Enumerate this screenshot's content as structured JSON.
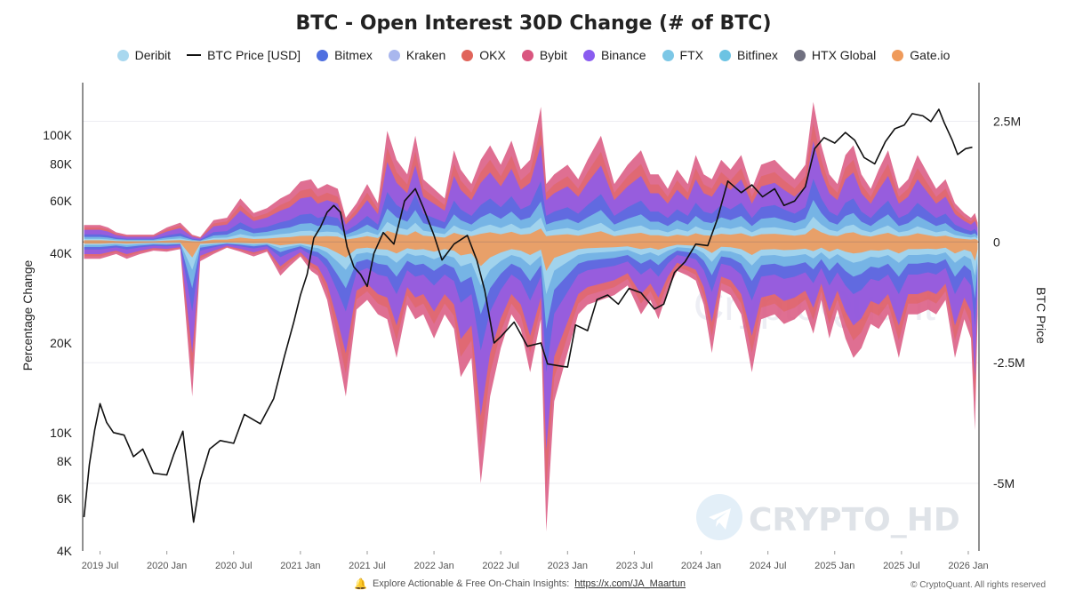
{
  "title": "BTC - Open Interest 30D Change (# of BTC)",
  "legend": [
    {
      "label": "Deribit",
      "color": "#a9d8ef",
      "kind": "dot"
    },
    {
      "label": "BTC Price [USD]",
      "color": "#111111",
      "kind": "line"
    },
    {
      "label": "Bitmex",
      "color": "#4f6fe0",
      "kind": "dot"
    },
    {
      "label": "Kraken",
      "color": "#a9b7ee",
      "kind": "dot"
    },
    {
      "label": "OKX",
      "color": "#e0645a",
      "kind": "dot"
    },
    {
      "label": "Bybit",
      "color": "#d9567f",
      "kind": "dot"
    },
    {
      "label": "Binance",
      "color": "#8a5cf0",
      "kind": "dot"
    },
    {
      "label": "FTX",
      "color": "#7cc7e6",
      "kind": "dot"
    },
    {
      "label": "Bitfinex",
      "color": "#6cc3e3",
      "kind": "dot"
    },
    {
      "label": "HTX Global",
      "color": "#707080",
      "kind": "dot"
    },
    {
      "label": "Gate.io",
      "color": "#ef9a5a",
      "kind": "dot"
    }
  ],
  "watermarks": {
    "center": "CryptoQuant",
    "corner": "CRYPTO_HD"
  },
  "footer": {
    "text": "Explore Actionable & Free On-Chain Insights:",
    "link": "https://x.com/JA_Maartun",
    "copyright": "© CryptoQuant. All rights reserved"
  },
  "chart_data": {
    "type": "area",
    "title": "BTC - Open Interest 30D Change (# of BTC)",
    "ylabel_left": "Percentage Change",
    "ylabel_right": "BTC Price",
    "x_ticks": [
      "2019 Jul",
      "2020 Jan",
      "2020 Jul",
      "2021 Jan",
      "2021 Jul",
      "2022 Jan",
      "2022 Jul",
      "2023 Jan",
      "2023 Jul",
      "2024 Jan",
      "2024 Jul",
      "2025 Jan",
      "2025 Jul",
      "2026 Jan"
    ],
    "left_axis": {
      "scale": "log",
      "ticks": [
        4000,
        6000,
        8000,
        10000,
        20000,
        40000,
        60000,
        80000,
        100000
      ],
      "tick_labels": [
        "4K",
        "6K",
        "8K",
        "10K",
        "20K",
        "40K",
        "60K",
        "80K",
        "100K"
      ],
      "range": [
        4000,
        150000
      ]
    },
    "right_axis": {
      "ticks": [
        2500000,
        0,
        -2500000,
        -5000000
      ],
      "tick_labels": [
        "2.5M",
        "0",
        "-2.5M",
        "-5M"
      ],
      "range": [
        -6400000,
        3300000
      ]
    },
    "grid": "horizontal",
    "legend_position": "top",
    "x_range": [
      2019.37,
      2026.08
    ],
    "price_series": {
      "name": "BTC Price [USD]",
      "points": [
        [
          2019.38,
          5200
        ],
        [
          2019.42,
          7800
        ],
        [
          2019.46,
          10200
        ],
        [
          2019.5,
          12500
        ],
        [
          2019.55,
          10800
        ],
        [
          2019.6,
          10000
        ],
        [
          2019.68,
          9800
        ],
        [
          2019.75,
          8300
        ],
        [
          2019.82,
          8800
        ],
        [
          2019.9,
          7300
        ],
        [
          2020.0,
          7200
        ],
        [
          2020.05,
          8400
        ],
        [
          2020.12,
          10100
        ],
        [
          2020.18,
          6000
        ],
        [
          2020.2,
          5000
        ],
        [
          2020.25,
          6900
        ],
        [
          2020.32,
          8800
        ],
        [
          2020.4,
          9400
        ],
        [
          2020.5,
          9200
        ],
        [
          2020.58,
          11500
        ],
        [
          2020.7,
          10700
        ],
        [
          2020.8,
          13000
        ],
        [
          2020.88,
          18000
        ],
        [
          2020.95,
          23500
        ],
        [
          2021.0,
          29000
        ],
        [
          2021.05,
          34000
        ],
        [
          2021.1,
          45000
        ],
        [
          2021.15,
          49000
        ],
        [
          2021.2,
          55000
        ],
        [
          2021.25,
          58000
        ],
        [
          2021.3,
          55000
        ],
        [
          2021.35,
          42000
        ],
        [
          2021.4,
          36000
        ],
        [
          2021.45,
          34000
        ],
        [
          2021.5,
          31000
        ],
        [
          2021.55,
          40000
        ],
        [
          2021.62,
          47000
        ],
        [
          2021.7,
          43000
        ],
        [
          2021.78,
          60000
        ],
        [
          2021.86,
          66000
        ],
        [
          2021.92,
          57000
        ],
        [
          2022.0,
          46000
        ],
        [
          2022.06,
          38000
        ],
        [
          2022.15,
          43000
        ],
        [
          2022.25,
          46000
        ],
        [
          2022.32,
          38000
        ],
        [
          2022.38,
          30000
        ],
        [
          2022.45,
          20000
        ],
        [
          2022.5,
          21000
        ],
        [
          2022.6,
          23500
        ],
        [
          2022.7,
          19500
        ],
        [
          2022.8,
          20000
        ],
        [
          2022.85,
          17000
        ],
        [
          2022.92,
          16800
        ],
        [
          2023.0,
          16600
        ],
        [
          2023.06,
          23000
        ],
        [
          2023.15,
          22000
        ],
        [
          2023.22,
          28000
        ],
        [
          2023.3,
          29000
        ],
        [
          2023.38,
          27000
        ],
        [
          2023.46,
          30500
        ],
        [
          2023.55,
          29500
        ],
        [
          2023.65,
          26000
        ],
        [
          2023.72,
          27000
        ],
        [
          2023.8,
          34500
        ],
        [
          2023.88,
          37500
        ],
        [
          2023.96,
          43000
        ],
        [
          2024.05,
          42500
        ],
        [
          2024.12,
          52000
        ],
        [
          2024.2,
          70000
        ],
        [
          2024.3,
          64000
        ],
        [
          2024.38,
          68000
        ],
        [
          2024.46,
          62000
        ],
        [
          2024.55,
          66000
        ],
        [
          2024.62,
          58000
        ],
        [
          2024.7,
          60000
        ],
        [
          2024.78,
          67000
        ],
        [
          2024.85,
          90000
        ],
        [
          2024.92,
          98000
        ],
        [
          2025.0,
          94000
        ],
        [
          2025.08,
          102000
        ],
        [
          2025.15,
          96000
        ],
        [
          2025.22,
          84000
        ],
        [
          2025.3,
          80000
        ],
        [
          2025.38,
          95000
        ],
        [
          2025.45,
          105000
        ],
        [
          2025.52,
          108000
        ],
        [
          2025.58,
          118000
        ],
        [
          2025.66,
          116000
        ],
        [
          2025.72,
          111000
        ],
        [
          2025.78,
          122000
        ],
        [
          2025.82,
          110000
        ],
        [
          2025.88,
          96000
        ],
        [
          2025.92,
          86000
        ],
        [
          2025.98,
          90000
        ],
        [
          2026.03,
          91000
        ]
      ]
    },
    "oi_change_envelope": {
      "name": "Open Interest 30D Change",
      "points": [
        [
          2019.38,
          350000,
          -350000
        ],
        [
          2019.5,
          350000,
          -350000
        ],
        [
          2019.56,
          300000,
          -300000
        ],
        [
          2019.62,
          200000,
          -250000
        ],
        [
          2019.7,
          150000,
          -350000
        ],
        [
          2019.8,
          150000,
          -250000
        ],
        [
          2019.9,
          150000,
          -180000
        ],
        [
          2020.0,
          300000,
          -200000
        ],
        [
          2020.1,
          400000,
          -150000
        ],
        [
          2020.19,
          150000,
          -3200000
        ],
        [
          2020.25,
          100000,
          -400000
        ],
        [
          2020.35,
          450000,
          -250000
        ],
        [
          2020.45,
          500000,
          -120000
        ],
        [
          2020.55,
          900000,
          -200000
        ],
        [
          2020.65,
          600000,
          -300000
        ],
        [
          2020.75,
          700000,
          -200000
        ],
        [
          2020.85,
          900000,
          -700000
        ],
        [
          2020.92,
          1000000,
          -500000
        ],
        [
          2021.0,
          1250000,
          -300000
        ],
        [
          2021.08,
          1300000,
          -600000
        ],
        [
          2021.13,
          1100000,
          -700000
        ],
        [
          2021.2,
          1200000,
          -1200000
        ],
        [
          2021.28,
          1100000,
          -2300000
        ],
        [
          2021.34,
          500000,
          -3200000
        ],
        [
          2021.42,
          800000,
          -1400000
        ],
        [
          2021.5,
          1200000,
          -1200000
        ],
        [
          2021.58,
          800000,
          -1500000
        ],
        [
          2021.65,
          2300000,
          -1600000
        ],
        [
          2021.72,
          1700000,
          -2400000
        ],
        [
          2021.8,
          1400000,
          -1300000
        ],
        [
          2021.86,
          2200000,
          -1600000
        ],
        [
          2021.92,
          1300000,
          -1500000
        ],
        [
          2022.0,
          1100000,
          -2000000
        ],
        [
          2022.08,
          900000,
          -1500000
        ],
        [
          2022.15,
          1900000,
          -1800000
        ],
        [
          2022.2,
          1500000,
          -2800000
        ],
        [
          2022.28,
          1200000,
          -2400000
        ],
        [
          2022.35,
          1700000,
          -5000000
        ],
        [
          2022.42,
          2000000,
          -3200000
        ],
        [
          2022.5,
          1600000,
          -2200000
        ],
        [
          2022.58,
          2100000,
          -1500000
        ],
        [
          2022.65,
          1500000,
          -1800000
        ],
        [
          2022.72,
          1700000,
          -2700000
        ],
        [
          2022.8,
          2800000,
          -1600000
        ],
        [
          2022.84,
          1200000,
          -6000000
        ],
        [
          2022.9,
          1400000,
          -3300000
        ],
        [
          2023.0,
          1600000,
          -2300000
        ],
        [
          2023.08,
          1300000,
          -1500000
        ],
        [
          2023.15,
          1700000,
          -1300000
        ],
        [
          2023.25,
          2200000,
          -1200000
        ],
        [
          2023.35,
          1200000,
          -1100000
        ],
        [
          2023.45,
          1600000,
          -900000
        ],
        [
          2023.55,
          1900000,
          -1500000
        ],
        [
          2023.62,
          1400000,
          -1200000
        ],
        [
          2023.68,
          1400000,
          -1600000
        ],
        [
          2023.75,
          1100000,
          -1000000
        ],
        [
          2023.82,
          1500000,
          -600000
        ],
        [
          2023.9,
          1200000,
          -700000
        ],
        [
          2023.96,
          1800000,
          -800000
        ],
        [
          2024.02,
          1400000,
          -1300000
        ],
        [
          2024.08,
          1300000,
          -2300000
        ],
        [
          2024.15,
          1700000,
          -1000000
        ],
        [
          2024.22,
          1500000,
          -1100000
        ],
        [
          2024.3,
          1800000,
          -1500000
        ],
        [
          2024.38,
          1100000,
          -2700000
        ],
        [
          2024.45,
          1600000,
          -1600000
        ],
        [
          2024.55,
          1700000,
          -1500000
        ],
        [
          2024.62,
          1500000,
          -1700000
        ],
        [
          2024.7,
          1300000,
          -1600000
        ],
        [
          2024.78,
          1600000,
          -1400000
        ],
        [
          2024.84,
          2900000,
          -1900000
        ],
        [
          2024.9,
          2000000,
          -1200000
        ],
        [
          2024.96,
          1400000,
          -2000000
        ],
        [
          2025.02,
          1200000,
          -1400000
        ],
        [
          2025.08,
          1800000,
          -2000000
        ],
        [
          2025.14,
          2000000,
          -2400000
        ],
        [
          2025.2,
          1400000,
          -2200000
        ],
        [
          2025.27,
          1100000,
          -1700000
        ],
        [
          2025.33,
          1500000,
          -1800000
        ],
        [
          2025.4,
          1900000,
          -1500000
        ],
        [
          2025.48,
          1100000,
          -2400000
        ],
        [
          2025.55,
          1300000,
          -1500000
        ],
        [
          2025.62,
          1800000,
          -1500000
        ],
        [
          2025.7,
          1400000,
          -1400000
        ],
        [
          2025.76,
          1100000,
          -1500000
        ],
        [
          2025.83,
          1300000,
          -1200000
        ],
        [
          2025.9,
          800000,
          -2400000
        ],
        [
          2025.97,
          600000,
          -1600000
        ],
        [
          2026.02,
          500000,
          -2000000
        ],
        [
          2026.05,
          600000,
          -3900000
        ],
        [
          2026.07,
          400000,
          -1500000
        ]
      ]
    }
  }
}
